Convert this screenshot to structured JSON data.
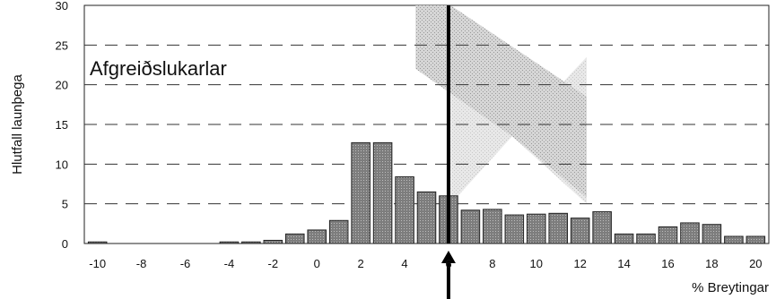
{
  "chart_data": {
    "type": "bar",
    "title": "Afgreiðslukarlar",
    "xlabel": "% Breytingar",
    "ylabel": "Hlutfall launþega",
    "xlim": [
      -10.6,
      20.6
    ],
    "ylim": [
      0,
      30
    ],
    "yticks": [
      0,
      5,
      10,
      15,
      20,
      25,
      30
    ],
    "xticks": [
      -10,
      -8,
      -6,
      -4,
      -2,
      0,
      2,
      4,
      6,
      8,
      10,
      12,
      14,
      16,
      18,
      20
    ],
    "grid": "horizontal dashed",
    "marker_x": 6,
    "series": [
      {
        "x": [
          -10,
          -9,
          -8,
          -7,
          -6,
          -5,
          -4,
          -3,
          -2,
          -1,
          0,
          1,
          2,
          3,
          4,
          5,
          6,
          7,
          8,
          9,
          10,
          11,
          12,
          13,
          14,
          15,
          16,
          17,
          18,
          19,
          20
        ],
        "values": [
          0.2,
          0,
          0,
          0,
          0,
          0,
          0.2,
          0.2,
          0.4,
          1.2,
          1.7,
          2.9,
          12.7,
          12.7,
          8.4,
          6.5,
          6.0,
          4.2,
          4.3,
          3.6,
          3.7,
          3.8,
          3.2,
          4.0,
          1.2,
          1.2,
          2.1,
          2.6,
          2.4,
          0.9,
          0.9
        ]
      }
    ],
    "colors": {
      "bar": "#8a8a8a",
      "bar_edge": "#222222",
      "shade": "#c4c4c4",
      "grid": "#333333",
      "marker": "#000000"
    }
  }
}
